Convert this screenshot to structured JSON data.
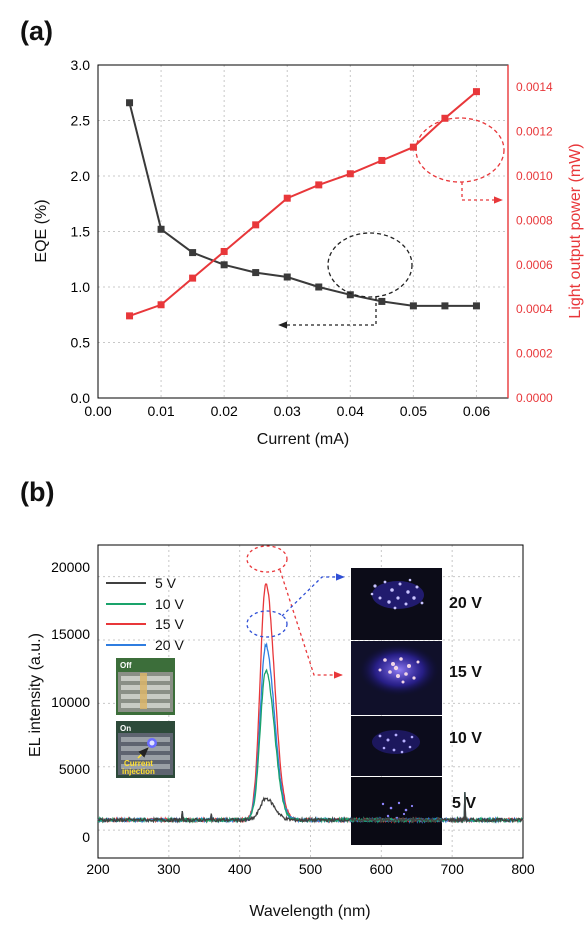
{
  "panel_a_label": "(a)",
  "panel_b_label": "(b)",
  "chart_data": [
    {
      "type": "line",
      "panel": "(a)",
      "xlabel": "Current (mA)",
      "ylabel": "EQE (%)",
      "ylabel_right": "Light output power (mW)",
      "xlim": [
        0.0,
        0.065
      ],
      "ylim": [
        0.0,
        3.0
      ],
      "ylim_right": [
        0.0,
        0.0015
      ],
      "xticks": [
        "0.00",
        "0.01",
        "0.02",
        "0.03",
        "0.04",
        "0.05",
        "0.06"
      ],
      "yticks": [
        "0.0",
        "0.5",
        "1.0",
        "1.5",
        "2.0",
        "2.5",
        "3.0"
      ],
      "yticks_right": [
        "0.0000",
        "0.0002",
        "0.0004",
        "0.0006",
        "0.0008",
        "0.0010",
        "0.0012",
        "0.0014"
      ],
      "grid": true,
      "x": [
        0.005,
        0.01,
        0.015,
        0.02,
        0.025,
        0.03,
        0.035,
        0.04,
        0.045,
        0.05,
        0.055,
        0.06
      ],
      "series": [
        {
          "axis": "left",
          "color": "#3a3a3a",
          "values": [
            2.66,
            1.52,
            1.31,
            1.2,
            1.13,
            1.09,
            1.0,
            0.93,
            0.87,
            0.83,
            0.83,
            0.83
          ]
        },
        {
          "axis": "right",
          "color": "#e8373a",
          "values": [
            0.00037,
            0.00042,
            0.00054,
            0.00066,
            0.00078,
            0.0009,
            0.00096,
            0.00101,
            0.00107,
            0.00113,
            0.00126,
            0.00138
          ]
        }
      ]
    },
    {
      "type": "line",
      "panel": "(b)",
      "xlabel": "Wavelength (nm)",
      "ylabel": "EL intensity (a.u.)",
      "xlim": [
        200,
        800
      ],
      "ylim": [
        -2200,
        22500
      ],
      "xticks": [
        "200",
        "300",
        "400",
        "500",
        "600",
        "700",
        "800"
      ],
      "yticks": [
        "0",
        "5000",
        "10000",
        "15000",
        "20000"
      ],
      "grid": true,
      "legend_position": "top-left",
      "peak_wavelength": 437,
      "baseline": 800,
      "series": [
        {
          "name": "5 V",
          "color": "#404040",
          "peak": 2500
        },
        {
          "name": "10 V",
          "color": "#1aa36b",
          "peak": 12600
        },
        {
          "name": "15 V",
          "color": "#e8373a",
          "peak": 19500
        },
        {
          "name": "20 V",
          "color": "#2f7de0",
          "peak": 14600
        }
      ],
      "spikes": [
        {
          "x": 319,
          "value": 1500
        },
        {
          "x": 360,
          "value": 1300
        },
        {
          "x": 718,
          "value": 3000
        }
      ],
      "inset_photos": [
        {
          "state": "Off",
          "label": ""
        },
        {
          "state": "On",
          "label": "Current injection"
        }
      ],
      "emission_photos": [
        {
          "voltage": "20 V"
        },
        {
          "voltage": "15 V"
        },
        {
          "voltage": "10 V"
        },
        {
          "voltage": "5 V"
        }
      ]
    }
  ]
}
